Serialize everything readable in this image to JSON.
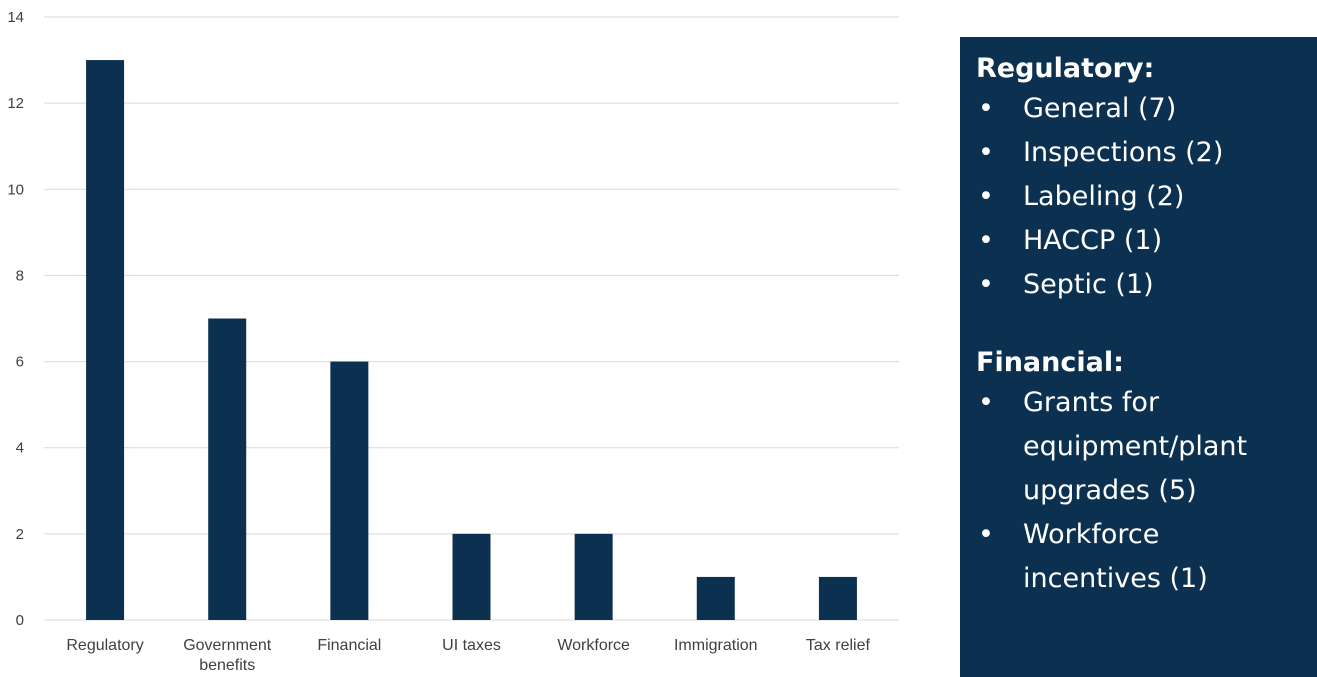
{
  "chart_data": {
    "type": "bar",
    "title": "",
    "xlabel": "",
    "ylabel": "",
    "categories": [
      "Regulatory",
      "Government benefits",
      "Financial",
      "UI taxes",
      "Workforce",
      "Immigration",
      "Tax relief"
    ],
    "values": [
      13,
      7,
      6,
      2,
      2,
      1,
      1
    ],
    "ylim": [
      0,
      14
    ],
    "yticks": [
      0,
      2,
      4,
      6,
      8,
      10,
      12,
      14
    ],
    "grid": true,
    "bar_color": "#0c3050",
    "grid_color": "#d9d9d9"
  },
  "panel": {
    "background": "#0c3050",
    "sections": [
      {
        "heading": "Regulatory:",
        "items": [
          "General (7)",
          "Inspections (2)",
          "Labeling (2)",
          "HACCP (1)",
          "Septic (1)"
        ]
      },
      {
        "heading": "Financial:",
        "items": [
          "Grants for equipment/plant upgrades (5)",
          "Workforce incentives (1)"
        ]
      }
    ]
  }
}
